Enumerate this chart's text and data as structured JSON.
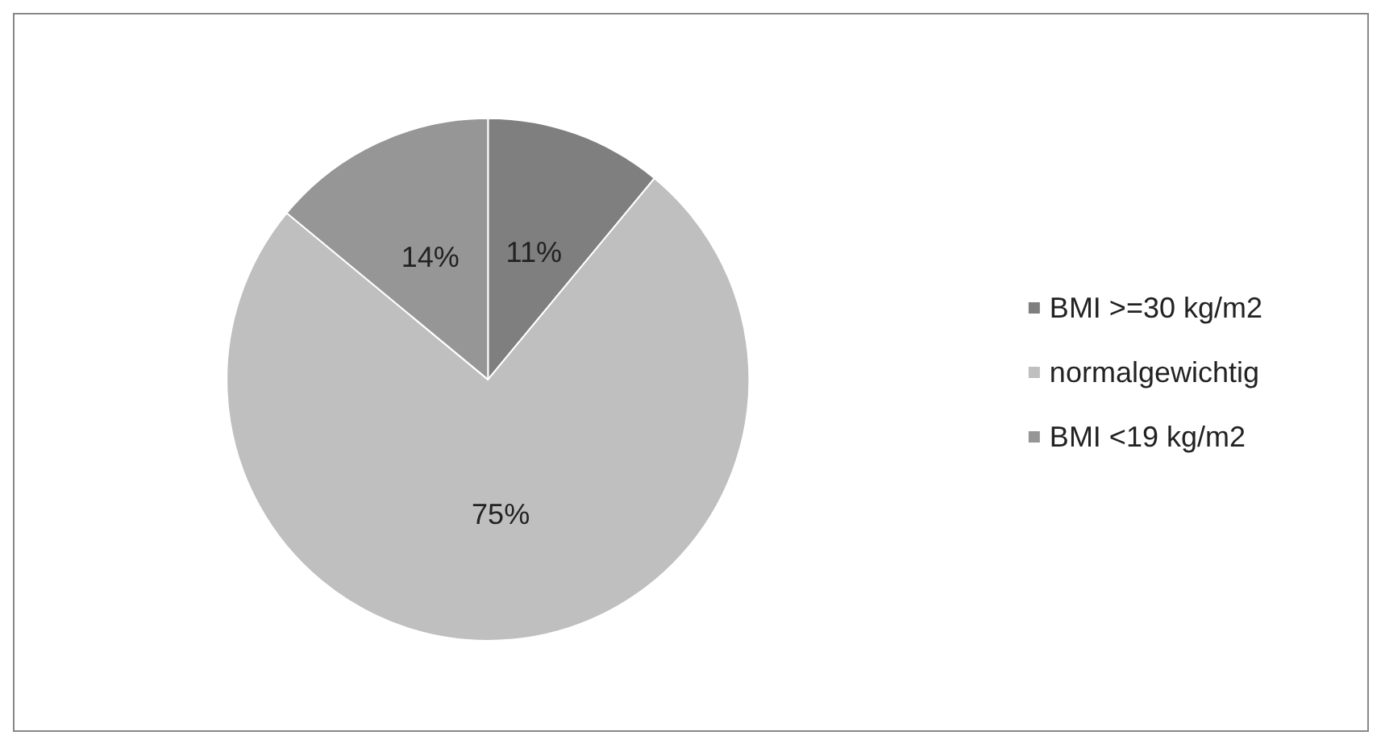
{
  "chart_data": {
    "type": "pie",
    "categories": [
      "BMI >=30 kg/m2",
      "normalgewichtig",
      "BMI <19 kg/m2"
    ],
    "values": [
      11,
      75,
      14
    ],
    "colors": [
      "#7f7f7f",
      "#bfbfbf",
      "#969696"
    ],
    "value_labels": [
      "11%",
      "75%",
      "14%"
    ],
    "legend": "right"
  }
}
